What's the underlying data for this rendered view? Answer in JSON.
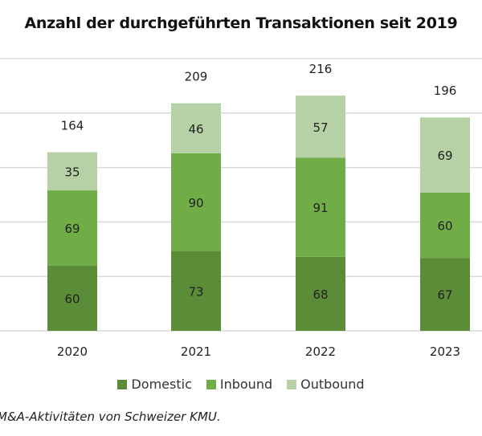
{
  "chart_data": {
    "type": "bar",
    "stacked": true,
    "title": "Anzahl der durchgeführten Transaktionen seit 2019",
    "categories": [
      "2020",
      "2021",
      "2022",
      "2023"
    ],
    "series": [
      {
        "name": "Domestic",
        "color": "#5b8c37",
        "values": [
          60,
          73,
          68,
          67
        ]
      },
      {
        "name": "Inbound",
        "color": "#70ad47",
        "values": [
          69,
          90,
          91,
          60
        ]
      },
      {
        "name": "Outbound",
        "color": "#b6d1a5",
        "values": [
          35,
          46,
          57,
          69
        ]
      }
    ],
    "totals": [
      "164",
      "209",
      "216",
      "196"
    ],
    "ylim": [
      0,
      250
    ],
    "grid": true,
    "legend": "bottom",
    "xlabel": "",
    "ylabel": ""
  },
  "caption": "M&A-Aktivitäten von Schweizer KMU."
}
